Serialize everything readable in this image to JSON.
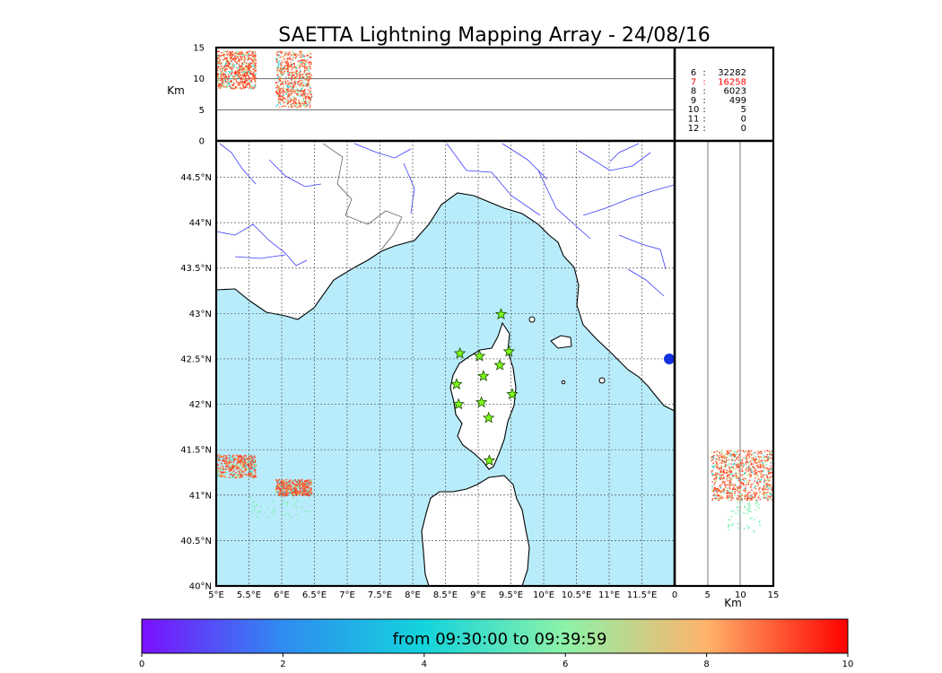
{
  "chart_data": {
    "type": "scatter",
    "title": "SAETTA Lightning Mapping Array - 24/08/16",
    "map": {
      "lon_range": [
        5,
        12
      ],
      "lat_range": [
        40,
        44.9
      ],
      "x_ticks": [
        "5°E",
        "5.5°E",
        "6°E",
        "6.5°E",
        "7°E",
        "7.5°E",
        "8°E",
        "8.5°E",
        "9°E",
        "9.5°E",
        "10°E",
        "10.5°E",
        "11°E",
        "11.5°E"
      ],
      "y_ticks": [
        "40°N",
        "40.5°N",
        "41°N",
        "41.5°N",
        "42°N",
        "42.5°N",
        "43°N",
        "43.5°N",
        "44°N",
        "44.5°N"
      ],
      "grid": "dotted",
      "sea_color": "#b8ecfb",
      "stations": [
        {
          "lon": 9.35,
          "lat": 42.99
        },
        {
          "lon": 8.72,
          "lat": 42.56
        },
        {
          "lon": 9.02,
          "lat": 42.53
        },
        {
          "lon": 9.47,
          "lat": 42.58
        },
        {
          "lon": 9.33,
          "lat": 42.43
        },
        {
          "lon": 9.08,
          "lat": 42.31
        },
        {
          "lon": 8.67,
          "lat": 42.22
        },
        {
          "lon": 9.52,
          "lat": 42.11
        },
        {
          "lon": 8.7,
          "lat": 42.0
        },
        {
          "lon": 9.05,
          "lat": 42.02
        },
        {
          "lon": 9.16,
          "lat": 41.85
        },
        {
          "lon": 9.17,
          "lat": 41.38
        }
      ],
      "lightning_clusters": [
        {
          "lon_range": [
            5.0,
            5.6
          ],
          "lat_range": [
            41.2,
            41.45
          ],
          "peak_time_color": "#ff4a2a"
        },
        {
          "lon_range": [
            5.9,
            6.45
          ],
          "lat_range": [
            41.0,
            41.18
          ],
          "peak_time_color": "#ff4a2a"
        }
      ]
    },
    "top_panel": {
      "ylabel": "Km",
      "y_ticks": [
        "0",
        "5",
        "10",
        "15"
      ],
      "ylim": [
        0,
        15
      ]
    },
    "right_panel": {
      "xlabel": "Km",
      "x_ticks": [
        "0",
        "5",
        "10",
        "15"
      ],
      "xlim": [
        0,
        15
      ]
    },
    "station_counts": [
      {
        "stations": "6",
        "count": "32282",
        "highlight": false
      },
      {
        "stations": "7",
        "count": "16258",
        "highlight": true
      },
      {
        "stations": "8",
        "count": "6023",
        "highlight": false
      },
      {
        "stations": "9",
        "count": "499",
        "highlight": false
      },
      {
        "stations": "10",
        "count": "5",
        "highlight": false
      },
      {
        "stations": "11",
        "count": "0",
        "highlight": false
      },
      {
        "stations": "12",
        "count": "0",
        "highlight": false
      }
    ],
    "colorbar": {
      "label": "from 09:30:00 to 09:39:59",
      "ticks": [
        "0",
        "2",
        "4",
        "6",
        "8",
        "10"
      ],
      "range": [
        0,
        10
      ],
      "colors": [
        "#7a10ff",
        "#2f8cf0",
        "#13d4dc",
        "#8df2a8",
        "#ffb36b",
        "#ff0000"
      ]
    }
  }
}
